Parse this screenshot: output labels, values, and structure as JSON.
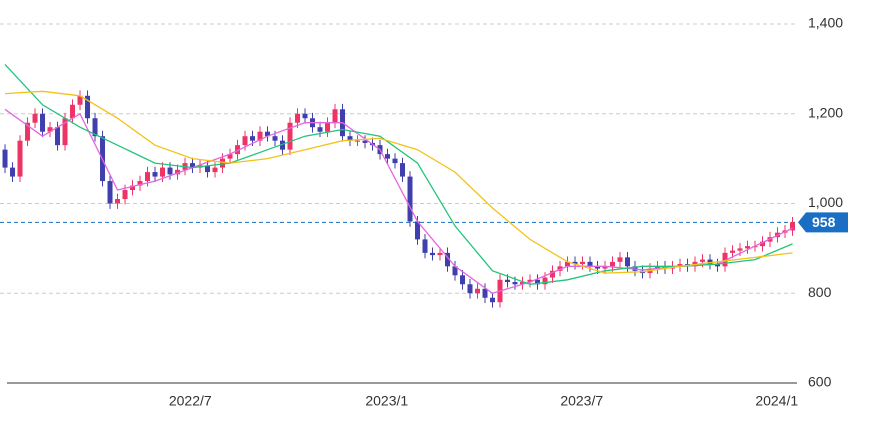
{
  "chart_data": {
    "type": "candlestick",
    "x": [
      0,
      1,
      2,
      3,
      4,
      5,
      6,
      7,
      8,
      9,
      10,
      11,
      12,
      13,
      14,
      15,
      16,
      17,
      18,
      19,
      20,
      21,
      22,
      23,
      24,
      25,
      26,
      27,
      28,
      29,
      30,
      31,
      32,
      33,
      34,
      35,
      36,
      37,
      38,
      39,
      40,
      41,
      42,
      43,
      44,
      45,
      46,
      47,
      48,
      49,
      50,
      51,
      52,
      53,
      54,
      55,
      56,
      57,
      58,
      59,
      60,
      61,
      62,
      63,
      64,
      65,
      66,
      67,
      68,
      69,
      70,
      71,
      72,
      73,
      74,
      75,
      76,
      77,
      78,
      79,
      80,
      81,
      82,
      83,
      84,
      85,
      86,
      87,
      88,
      89,
      90,
      91,
      92,
      93,
      94,
      95,
      96,
      97,
      98,
      99,
      100,
      101,
      102,
      103,
      104,
      105
    ],
    "open": [
      1120,
      1080,
      1060,
      1140,
      1180,
      1200,
      1160,
      1170,
      1130,
      1190,
      1220,
      1240,
      1190,
      1150,
      1050,
      1000,
      1010,
      1030,
      1040,
      1050,
      1070,
      1060,
      1080,
      1065,
      1075,
      1090,
      1080,
      1085,
      1070,
      1080,
      1100,
      1110,
      1130,
      1150,
      1140,
      1160,
      1150,
      1140,
      1120,
      1180,
      1200,
      1190,
      1170,
      1160,
      1180,
      1210,
      1150,
      1140,
      1140,
      1135,
      1130,
      1110,
      1100,
      1090,
      1060,
      960,
      920,
      890,
      885,
      890,
      860,
      840,
      820,
      800,
      810,
      790,
      780,
      830,
      825,
      820,
      825,
      830,
      820,
      835,
      850,
      860,
      870,
      865,
      870,
      860,
      855,
      860,
      870,
      880,
      860,
      850,
      845,
      855,
      860,
      855,
      860,
      865,
      860,
      870,
      875,
      865,
      860,
      890,
      895,
      900,
      905,
      905,
      915,
      925,
      935,
      940
    ],
    "high": [
      1132,
      1092,
      1152,
      1192,
      1212,
      1212,
      1182,
      1182,
      1202,
      1232,
      1252,
      1252,
      1202,
      1162,
      1062,
      1022,
      1042,
      1052,
      1062,
      1082,
      1082,
      1092,
      1092,
      1087,
      1102,
      1102,
      1097,
      1097,
      1092,
      1112,
      1122,
      1142,
      1162,
      1162,
      1172,
      1172,
      1162,
      1152,
      1192,
      1212,
      1212,
      1202,
      1182,
      1192,
      1222,
      1222,
      1162,
      1152,
      1152,
      1147,
      1142,
      1122,
      1112,
      1102,
      1072,
      972,
      932,
      902,
      902,
      902,
      872,
      852,
      832,
      822,
      822,
      802,
      842,
      842,
      837,
      837,
      842,
      842,
      847,
      862,
      872,
      882,
      882,
      882,
      882,
      872,
      872,
      882,
      892,
      892,
      872,
      862,
      867,
      872,
      872,
      872,
      877,
      877,
      882,
      887,
      887,
      877,
      902,
      907,
      912,
      917,
      917,
      927,
      937,
      947,
      952,
      970
    ],
    "low": [
      1068,
      1048,
      1048,
      1128,
      1168,
      1148,
      1148,
      1118,
      1118,
      1178,
      1208,
      1178,
      1138,
      1038,
      988,
      988,
      998,
      1018,
      1028,
      1038,
      1048,
      1048,
      1053,
      1053,
      1063,
      1068,
      1068,
      1058,
      1058,
      1068,
      1088,
      1098,
      1118,
      1128,
      1128,
      1138,
      1128,
      1108,
      1108,
      1168,
      1178,
      1158,
      1148,
      1148,
      1168,
      1138,
      1128,
      1128,
      1123,
      1118,
      1098,
      1088,
      1078,
      1048,
      948,
      908,
      878,
      873,
      873,
      848,
      828,
      808,
      788,
      788,
      778,
      768,
      768,
      813,
      808,
      808,
      813,
      808,
      808,
      823,
      838,
      848,
      853,
      853,
      848,
      843,
      843,
      848,
      858,
      848,
      838,
      833,
      833,
      843,
      843,
      843,
      848,
      848,
      848,
      858,
      853,
      848,
      848,
      878,
      883,
      888,
      893,
      893,
      903,
      913,
      923,
      928
    ],
    "close": [
      1080,
      1060,
      1140,
      1180,
      1200,
      1160,
      1170,
      1130,
      1190,
      1220,
      1240,
      1190,
      1150,
      1050,
      1000,
      1010,
      1030,
      1040,
      1050,
      1070,
      1060,
      1080,
      1065,
      1075,
      1090,
      1080,
      1085,
      1070,
      1080,
      1100,
      1110,
      1130,
      1150,
      1140,
      1160,
      1150,
      1140,
      1120,
      1180,
      1200,
      1190,
      1170,
      1160,
      1180,
      1210,
      1150,
      1140,
      1140,
      1135,
      1130,
      1110,
      1100,
      1090,
      1060,
      960,
      920,
      890,
      885,
      890,
      860,
      840,
      820,
      800,
      810,
      790,
      780,
      830,
      825,
      820,
      825,
      830,
      820,
      835,
      850,
      860,
      870,
      865,
      870,
      860,
      855,
      860,
      870,
      880,
      860,
      850,
      845,
      855,
      860,
      855,
      860,
      865,
      860,
      870,
      875,
      865,
      860,
      890,
      895,
      900,
      905,
      905,
      915,
      925,
      935,
      940,
      958
    ],
    "up_color": "#ee3366",
    "down_color": "#3f3fae",
    "lines": [
      {
        "color": "#e466e0",
        "x": [
          0,
          5,
          10,
          15,
          20,
          25,
          30,
          35,
          40,
          45,
          50,
          55,
          60,
          65,
          70,
          75,
          80,
          85,
          90,
          95,
          100,
          105
        ],
        "values": [
          1210,
          1150,
          1200,
          1030,
          1050,
          1080,
          1110,
          1150,
          1180,
          1180,
          1120,
          960,
          860,
          800,
          825,
          860,
          860,
          852,
          860,
          865,
          905,
          945
        ]
      },
      {
        "color": "#22c47a",
        "x": [
          0,
          5,
          10,
          15,
          20,
          25,
          30,
          35,
          40,
          45,
          50,
          55,
          60,
          65,
          70,
          75,
          80,
          85,
          90,
          95,
          100,
          105
        ],
        "values": [
          1310,
          1220,
          1170,
          1130,
          1090,
          1080,
          1090,
          1120,
          1150,
          1165,
          1150,
          1090,
          950,
          850,
          820,
          830,
          850,
          860,
          860,
          865,
          875,
          910
        ]
      },
      {
        "color": "#f2c21b",
        "x": [
          0,
          5,
          10,
          15,
          20,
          25,
          30,
          35,
          40,
          45,
          50,
          55,
          60,
          65,
          70,
          75,
          80,
          85,
          90,
          95,
          100,
          105
        ],
        "values": [
          1245,
          1250,
          1240,
          1190,
          1130,
          1100,
          1090,
          1100,
          1120,
          1140,
          1145,
          1120,
          1070,
          990,
          920,
          870,
          845,
          848,
          860,
          870,
          880,
          890
        ]
      }
    ],
    "last_price": 958,
    "last_color": "#1a6fc4",
    "xlim": [
      -0.67,
      105.6
    ],
    "xticks": [
      {
        "value": 24.7,
        "label": "2022/7"
      },
      {
        "value": 50.9,
        "label": "2023/1"
      },
      {
        "value": 76.9,
        "label": "2023/7"
      },
      {
        "value": 102.9,
        "label": "2024/1"
      }
    ],
    "ylim": [
      600,
      1400
    ],
    "yticks": [
      600,
      800,
      {
        "value": 1000,
        "label": "1,000"
      },
      {
        "value": 1200,
        "label": "1,200"
      },
      {
        "value": 1400,
        "label": "1,400"
      }
    ],
    "grid": true
  }
}
